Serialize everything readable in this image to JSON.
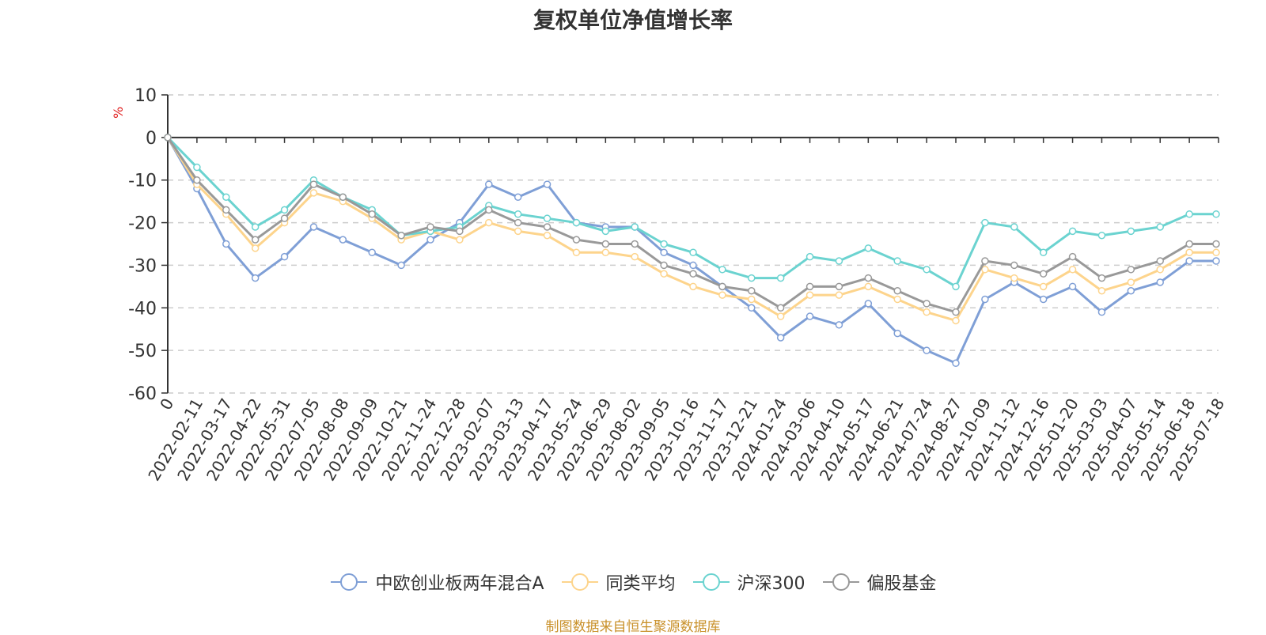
{
  "chart_data": {
    "type": "line",
    "title": "复权单位净值增长率",
    "ylabel": "%",
    "xlabel": "",
    "ylim": [
      -60,
      10
    ],
    "yticks": [
      10,
      0,
      -10,
      -20,
      -30,
      -40,
      -50,
      -60
    ],
    "x_start_label": "0",
    "categories": [
      "2022-02-11",
      "2022-03-17",
      "2022-04-22",
      "2022-05-31",
      "2022-07-05",
      "2022-08-08",
      "2022-09-09",
      "2022-10-21",
      "2022-11-24",
      "2022-12-28",
      "2023-02-07",
      "2023-03-13",
      "2023-04-17",
      "2023-05-24",
      "2023-06-29",
      "2023-08-02",
      "2023-09-05",
      "2023-10-16",
      "2023-11-17",
      "2023-12-21",
      "2024-01-24",
      "2024-03-06",
      "2024-04-10",
      "2024-05-17",
      "2024-06-21",
      "2024-07-24",
      "2024-08-27",
      "2024-10-09",
      "2024-11-12",
      "2024-12-16",
      "2025-01-20",
      "2025-03-03",
      "2025-04-07",
      "2025-05-14",
      "2025-06-18",
      "2025-07-18"
    ],
    "grid": true,
    "legend_position": "bottom",
    "series": [
      {
        "name": "中欧创业板两年混合A",
        "color": "#7f9fd6",
        "values": [
          0,
          -12,
          -25,
          -33,
          -28,
          -21,
          -24,
          -27,
          -30,
          -24,
          -20,
          -11,
          -14,
          -11,
          -20,
          -21,
          -21,
          -27,
          -30,
          -35,
          -40,
          -47,
          -42,
          -44,
          -39,
          -46,
          -50,
          -53,
          -38,
          -34,
          -38,
          -35,
          -41,
          -36,
          -34,
          -29
        ]
      },
      {
        "name": "同类平均",
        "color": "#fdd48c",
        "values": [
          0,
          -11,
          -18,
          -26,
          -20,
          -13,
          -15,
          -19,
          -24,
          -22,
          -24,
          -20,
          -22,
          -23,
          -27,
          -27,
          -28,
          -32,
          -35,
          -37,
          -38,
          -42,
          -37,
          -37,
          -35,
          -38,
          -41,
          -43,
          -31,
          -33,
          -35,
          -31,
          -36,
          -34,
          -31,
          -27
        ]
      },
      {
        "name": "沪深300",
        "color": "#6bd3d0",
        "values": [
          0,
          -7,
          -14,
          -21,
          -17,
          -10,
          -14,
          -17,
          -23,
          -22,
          -21,
          -16,
          -18,
          -19,
          -20,
          -22,
          -21,
          -25,
          -27,
          -31,
          -33,
          -33,
          -28,
          -29,
          -26,
          -29,
          -31,
          -35,
          -20,
          -21,
          -27,
          -22,
          -23,
          -22,
          -21,
          -18
        ]
      },
      {
        "name": "偏股基金",
        "color": "#999999",
        "values": [
          0,
          -10,
          -17,
          -24,
          -19,
          -11,
          -14,
          -18,
          -23,
          -21,
          -22,
          -17,
          -20,
          -21,
          -24,
          -25,
          -25,
          -30,
          -32,
          -35,
          -36,
          -40,
          -35,
          -35,
          -33,
          -36,
          -39,
          -41,
          -29,
          -30,
          -32,
          -28,
          -33,
          -31,
          -29,
          -25
        ]
      }
    ]
  },
  "footer": "制图数据来自恒生聚源数据库"
}
